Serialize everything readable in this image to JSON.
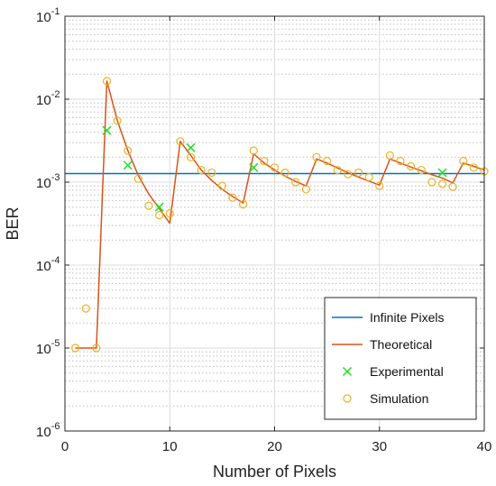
{
  "chart_data": {
    "type": "line",
    "title": "",
    "xlabel": "Number of Pixels",
    "ylabel": "BER",
    "xlim": [
      0,
      40
    ],
    "ylim": [
      1e-06,
      0.1
    ],
    "y_scale": "log",
    "grid": true,
    "minor_grid": true,
    "legend_position": "bottom-right",
    "x_ticks": [
      "0",
      "10",
      "20",
      "30",
      "40"
    ],
    "y_ticks": [
      {
        "base": "10",
        "exp": "-6"
      },
      {
        "base": "10",
        "exp": "-5"
      },
      {
        "base": "10",
        "exp": "-4"
      },
      {
        "base": "10",
        "exp": "-3"
      },
      {
        "base": "10",
        "exp": "-2"
      },
      {
        "base": "10",
        "exp": "-1"
      }
    ],
    "series": [
      {
        "name": "Infinite Pixels",
        "style": "line",
        "color": "#0072BD",
        "x": [
          0,
          40
        ],
        "y": [
          0.00127,
          0.00127
        ]
      },
      {
        "name": "Theoretical",
        "style": "line",
        "color": "#D95319",
        "x": [
          1,
          2,
          3,
          4,
          5,
          6,
          7,
          8,
          9,
          10,
          11,
          12,
          13,
          14,
          15,
          16,
          17,
          18,
          19,
          20,
          21,
          22,
          23,
          24,
          25,
          26,
          27,
          28,
          29,
          30,
          31,
          32,
          33,
          34,
          35,
          36,
          37,
          38,
          39,
          40
        ],
        "y": [
          1e-05,
          1e-05,
          1e-05,
          0.0165,
          0.0055,
          0.0024,
          0.0012,
          0.00072,
          0.00048,
          0.00032,
          0.0031,
          0.0021,
          0.0014,
          0.00105,
          0.00082,
          0.00067,
          0.00056,
          0.0022,
          0.0017,
          0.0014,
          0.00118,
          0.00102,
          0.0009,
          0.0019,
          0.0017,
          0.00148,
          0.0013,
          0.00115,
          0.00103,
          0.00092,
          0.0019,
          0.0017,
          0.00152,
          0.00137,
          0.00123,
          0.00112,
          0.00098,
          0.0017,
          0.00155,
          0.0014
        ]
      },
      {
        "name": "Experimental",
        "style": "marker-x",
        "color": "#22DD22",
        "x": [
          4,
          6,
          9,
          12,
          18,
          36
        ],
        "y": [
          0.0042,
          0.0016,
          0.0005,
          0.0026,
          0.0015,
          0.0013
        ]
      },
      {
        "name": "Simulation",
        "style": "marker-o",
        "color": "#EDB120",
        "x": [
          1,
          2,
          3,
          4,
          5,
          6,
          7,
          8,
          9,
          10,
          11,
          12,
          13,
          14,
          15,
          16,
          17,
          18,
          19,
          20,
          21,
          22,
          23,
          24,
          25,
          26,
          27,
          28,
          29,
          30,
          31,
          32,
          33,
          34,
          35,
          36,
          37,
          38,
          39,
          40
        ],
        "y": [
          1e-05,
          3e-05,
          1e-05,
          0.0165,
          0.0055,
          0.0024,
          0.0011,
          0.00052,
          0.0004,
          0.00042,
          0.0031,
          0.002,
          0.0014,
          0.0013,
          0.0009,
          0.00065,
          0.00054,
          0.0024,
          0.0018,
          0.0015,
          0.0013,
          0.001,
          0.00082,
          0.002,
          0.0018,
          0.0014,
          0.00125,
          0.0013,
          0.00115,
          0.0009,
          0.0021,
          0.0018,
          0.00155,
          0.0014,
          0.001,
          0.00095,
          0.00088,
          0.0018,
          0.0015,
          0.00135
        ]
      }
    ]
  }
}
